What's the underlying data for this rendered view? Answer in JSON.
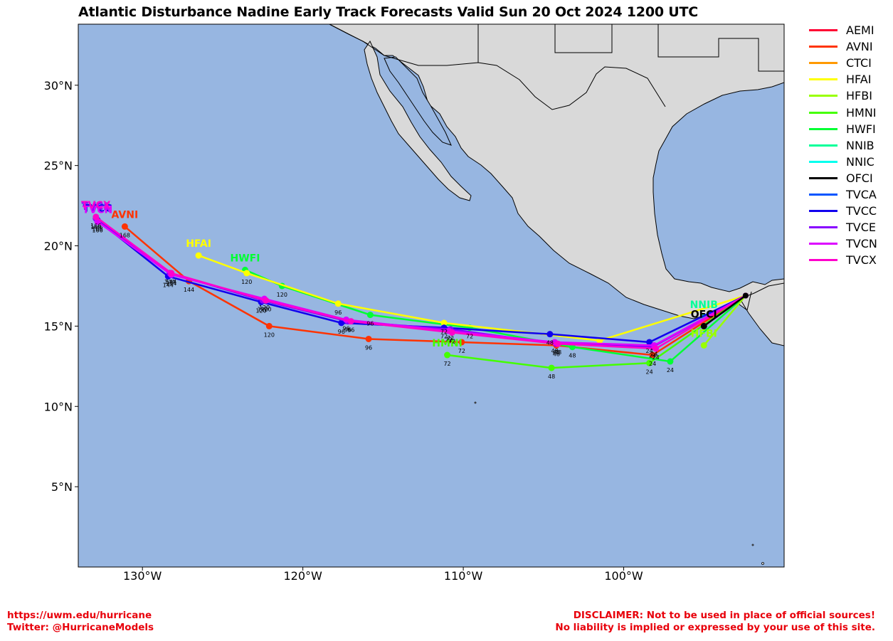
{
  "title": "Atlantic Disturbance Nadine Early Track Forecasts Valid Sun 20 Oct 2024 1200 UTC",
  "colors": {
    "ocean": "#97b6e1",
    "land": "#d9d9d9",
    "border": "#000000"
  },
  "legend": [
    {
      "name": "AEMI",
      "color": "#ff0033"
    },
    {
      "name": "AVNI",
      "color": "#ff3300"
    },
    {
      "name": "CTCI",
      "color": "#ff9900"
    },
    {
      "name": "HFAI",
      "color": "#ffff00"
    },
    {
      "name": "HFBI",
      "color": "#99ff00"
    },
    {
      "name": "HMNI",
      "color": "#44ff00"
    },
    {
      "name": "HWFI",
      "color": "#00ff33"
    },
    {
      "name": "NNIB",
      "color": "#00ff99"
    },
    {
      "name": "NNIC",
      "color": "#00ffee"
    },
    {
      "name": "OFCI",
      "color": "#000000"
    },
    {
      "name": "TVCA",
      "color": "#0055ff"
    },
    {
      "name": "TVCC",
      "color": "#1100ee"
    },
    {
      "name": "TVCE",
      "color": "#8800ff"
    },
    {
      "name": "TVCN",
      "color": "#dd00ff"
    },
    {
      "name": "TVCX",
      "color": "#ff00cc"
    }
  ],
  "axes": {
    "lon_range": [
      -134,
      -90
    ],
    "lat_range": [
      0,
      33.8
    ],
    "lon_ticks": [
      {
        "value": -130,
        "label": "130°W"
      },
      {
        "value": -120,
        "label": "120°W"
      },
      {
        "value": -110,
        "label": "110°W"
      },
      {
        "value": -100,
        "label": "100°W"
      }
    ],
    "lat_ticks": [
      {
        "value": 30,
        "label": "30°N"
      },
      {
        "value": 25,
        "label": "25°N"
      },
      {
        "value": 20,
        "label": "20°N"
      },
      {
        "value": 15,
        "label": "15°N"
      },
      {
        "value": 10,
        "label": "10°N"
      },
      {
        "value": 5,
        "label": "5°N"
      }
    ]
  },
  "chart_data": {
    "type": "line",
    "title": "Atlantic Disturbance Nadine Early Track Forecasts Valid Sun 20 Oct 2024 1200 UTC",
    "xlabel": "",
    "ylabel": "",
    "xlim": [
      -134,
      -90
    ],
    "ylim": [
      0,
      33.8
    ],
    "legend_placement": "right",
    "series": [
      {
        "name": "AVNI",
        "color": "#ff3300",
        "points": [
          [
            -92.4,
            16.9
          ],
          [
            -98.2,
            13.2
          ],
          [
            -104.2,
            13.8
          ],
          [
            -110.1,
            14.0
          ],
          [
            -115.9,
            14.2
          ],
          [
            -122.1,
            15.0
          ],
          [
            -127.1,
            17.8
          ],
          [
            -131.1,
            21.2
          ]
        ],
        "hours": [
          "",
          "24",
          "48",
          "72",
          "96",
          "120",
          "144",
          "168"
        ],
        "label": "AVNI"
      },
      {
        "name": "HMNI",
        "color": "#44ff00",
        "points": [
          [
            -92.4,
            16.9
          ],
          [
            -98.4,
            12.7
          ],
          [
            -104.5,
            12.4
          ],
          [
            -111.0,
            13.2
          ]
        ],
        "hours": [
          "",
          "24",
          "48",
          "72"
        ],
        "label": "HMNI"
      },
      {
        "name": "HWFI",
        "color": "#00ff33",
        "points": [
          [
            -92.4,
            16.9
          ],
          [
            -97.1,
            12.8
          ],
          [
            -103.2,
            13.7
          ],
          [
            -109.6,
            14.9
          ],
          [
            -115.8,
            15.7
          ],
          [
            -121.3,
            17.5
          ],
          [
            -123.6,
            18.5
          ]
        ],
        "hours": [
          "",
          "24",
          "48",
          "72",
          "96",
          "120",
          ""
        ],
        "label": "HWFI"
      },
      {
        "name": "HFAI",
        "color": "#ffff00",
        "points": [
          [
            -92.4,
            16.9
          ],
          [
            -101.5,
            14.1
          ],
          [
            -111.2,
            15.2
          ],
          [
            -117.8,
            16.4
          ],
          [
            -123.5,
            18.3
          ],
          [
            -126.5,
            19.4
          ]
        ],
        "hours": [
          "",
          "",
          "72",
          "96",
          "120",
          ""
        ],
        "label": "HFAI"
      },
      {
        "name": "NNIB",
        "color": "#00ff99",
        "points": [
          [
            -92.4,
            16.9
          ],
          [
            -95.0,
            15.6
          ]
        ],
        "hours": [
          "",
          ""
        ],
        "label": "NNIB"
      },
      {
        "name": "HFBI",
        "color": "#99ff00",
        "points": [
          [
            -92.4,
            16.9
          ],
          [
            -95.0,
            13.8
          ]
        ],
        "hours": [
          "",
          ""
        ],
        "label": "HFBI"
      },
      {
        "name": "TVCC",
        "color": "#1100ee",
        "points": [
          [
            -92.4,
            16.9
          ],
          [
            -98.4,
            14.0
          ],
          [
            -104.6,
            14.5
          ],
          [
            -111.2,
            14.9
          ],
          [
            -117.6,
            15.2
          ],
          [
            -122.6,
            16.5
          ],
          [
            -128.4,
            18.1
          ],
          [
            -132.8,
            21.6
          ]
        ],
        "hours": [
          "",
          "24",
          "48",
          "72",
          "96",
          "120",
          "144",
          "168"
        ],
        "label": "TVCC"
      },
      {
        "name": "TVCE",
        "color": "#8800ff",
        "points": [
          [
            -92.4,
            16.9
          ],
          [
            -98.2,
            13.7
          ],
          [
            -104.2,
            13.9
          ],
          [
            -110.8,
            14.8
          ],
          [
            -117.2,
            15.3
          ],
          [
            -122.5,
            16.6
          ],
          [
            -128.3,
            18.3
          ],
          [
            -132.9,
            21.7
          ]
        ],
        "hours": [
          "",
          "24",
          "48",
          "72",
          "96",
          "120",
          "144",
          "168"
        ],
        "label": "TVCE"
      },
      {
        "name": "TVCN",
        "color": "#dd00ff",
        "points": [
          [
            -92.4,
            16.9
          ],
          [
            -98.1,
            13.8
          ],
          [
            -104.3,
            14.0
          ],
          [
            -110.9,
            14.7
          ],
          [
            -117.3,
            15.4
          ],
          [
            -122.4,
            16.7
          ],
          [
            -128.2,
            18.2
          ],
          [
            -132.8,
            21.5
          ]
        ],
        "hours": [
          "",
          "24",
          "48",
          "72",
          "96",
          "120",
          "144",
          "166"
        ],
        "label": "TVCN"
      },
      {
        "name": "TVCX",
        "color": "#ff00cc",
        "points": [
          [
            -92.4,
            16.9
          ],
          [
            -98.0,
            13.6
          ],
          [
            -104.1,
            13.9
          ],
          [
            -110.7,
            14.6
          ],
          [
            -117.0,
            15.3
          ],
          [
            -122.3,
            16.6
          ],
          [
            -128.2,
            18.3
          ],
          [
            -132.9,
            21.8
          ]
        ],
        "hours": [
          "",
          "24",
          "48",
          "72",
          "96",
          "120",
          "144",
          "166"
        ],
        "label": "TVCX"
      },
      {
        "name": "OFCI",
        "color": "#000000",
        "points": [
          [
            -92.4,
            16.9
          ],
          [
            -95.0,
            15.0
          ]
        ],
        "hours": [
          "",
          ""
        ],
        "label": "OFCI"
      }
    ]
  },
  "footer": {
    "left_line1": "https://uwm.edu/hurricane",
    "left_line2": "Twitter: @HurricaneModels",
    "right_line1": "DISCLAIMER: Not to be used in place of official sources!",
    "right_line2": "No liability is implied or expressed by your use of this site."
  }
}
